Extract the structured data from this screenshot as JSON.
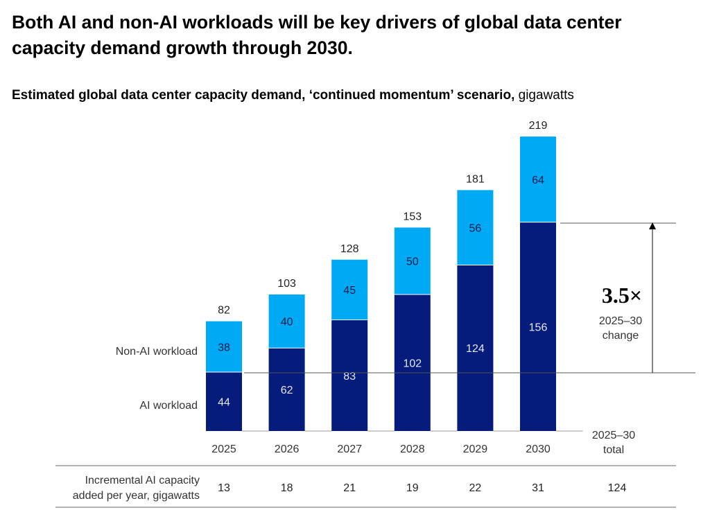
{
  "title": "Both AI and non-AI workloads will be key drivers of global data center capacity demand growth through 2030.",
  "subtitle": {
    "main": "Estimated global data center capacity demand, ‘continued momentum’ scenario,",
    "unit": "gigawatts"
  },
  "chart_data": {
    "type": "bar",
    "stacked": true,
    "categories": [
      "2025",
      "2026",
      "2027",
      "2028",
      "2029",
      "2030"
    ],
    "series": [
      {
        "name": "AI workload",
        "values": [
          44,
          62,
          83,
          102,
          124,
          156
        ],
        "color": "#051c7c"
      },
      {
        "name": "Non-AI workload",
        "values": [
          38,
          40,
          45,
          50,
          56,
          64
        ],
        "color": "#00a9f4"
      }
    ],
    "totals": [
      82,
      103,
      128,
      153,
      181,
      219
    ],
    "ylim": [
      0,
      219
    ],
    "grid": false,
    "legend": "left, inline labels",
    "annotation": {
      "value": "3.5×",
      "line1": "2025–30",
      "line2": "change"
    },
    "total_header": {
      "line1": "2025–30",
      "line2": "total"
    }
  },
  "table": {
    "row_label": {
      "line1": "Incremental AI capacity",
      "line2": "added per year, gigawatts"
    },
    "values": [
      "13",
      "18",
      "21",
      "19",
      "22",
      "31"
    ],
    "total": "124"
  }
}
